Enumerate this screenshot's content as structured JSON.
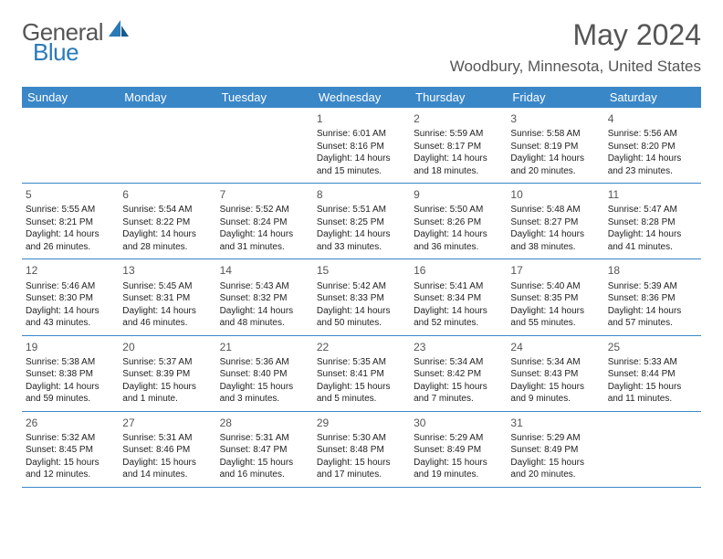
{
  "logo": {
    "general": "General",
    "blue": "Blue"
  },
  "title": "May 2024",
  "location": "Woodbury, Minnesota, United States",
  "colors": {
    "header_bg": "#3a87c8",
    "header_text": "#ffffff",
    "text_gray": "#555555",
    "text_dark": "#222222",
    "logo_blue": "#2a7ab8",
    "border": "#3a87c8",
    "background": "#ffffff"
  },
  "day_names": [
    "Sunday",
    "Monday",
    "Tuesday",
    "Wednesday",
    "Thursday",
    "Friday",
    "Saturday"
  ],
  "weeks": [
    [
      {
        "n": "",
        "sr": "",
        "ss": "",
        "dl": ""
      },
      {
        "n": "",
        "sr": "",
        "ss": "",
        "dl": ""
      },
      {
        "n": "",
        "sr": "",
        "ss": "",
        "dl": ""
      },
      {
        "n": "1",
        "sr": "Sunrise: 6:01 AM",
        "ss": "Sunset: 8:16 PM",
        "dl": "Daylight: 14 hours and 15 minutes."
      },
      {
        "n": "2",
        "sr": "Sunrise: 5:59 AM",
        "ss": "Sunset: 8:17 PM",
        "dl": "Daylight: 14 hours and 18 minutes."
      },
      {
        "n": "3",
        "sr": "Sunrise: 5:58 AM",
        "ss": "Sunset: 8:19 PM",
        "dl": "Daylight: 14 hours and 20 minutes."
      },
      {
        "n": "4",
        "sr": "Sunrise: 5:56 AM",
        "ss": "Sunset: 8:20 PM",
        "dl": "Daylight: 14 hours and 23 minutes."
      }
    ],
    [
      {
        "n": "5",
        "sr": "Sunrise: 5:55 AM",
        "ss": "Sunset: 8:21 PM",
        "dl": "Daylight: 14 hours and 26 minutes."
      },
      {
        "n": "6",
        "sr": "Sunrise: 5:54 AM",
        "ss": "Sunset: 8:22 PM",
        "dl": "Daylight: 14 hours and 28 minutes."
      },
      {
        "n": "7",
        "sr": "Sunrise: 5:52 AM",
        "ss": "Sunset: 8:24 PM",
        "dl": "Daylight: 14 hours and 31 minutes."
      },
      {
        "n": "8",
        "sr": "Sunrise: 5:51 AM",
        "ss": "Sunset: 8:25 PM",
        "dl": "Daylight: 14 hours and 33 minutes."
      },
      {
        "n": "9",
        "sr": "Sunrise: 5:50 AM",
        "ss": "Sunset: 8:26 PM",
        "dl": "Daylight: 14 hours and 36 minutes."
      },
      {
        "n": "10",
        "sr": "Sunrise: 5:48 AM",
        "ss": "Sunset: 8:27 PM",
        "dl": "Daylight: 14 hours and 38 minutes."
      },
      {
        "n": "11",
        "sr": "Sunrise: 5:47 AM",
        "ss": "Sunset: 8:28 PM",
        "dl": "Daylight: 14 hours and 41 minutes."
      }
    ],
    [
      {
        "n": "12",
        "sr": "Sunrise: 5:46 AM",
        "ss": "Sunset: 8:30 PM",
        "dl": "Daylight: 14 hours and 43 minutes."
      },
      {
        "n": "13",
        "sr": "Sunrise: 5:45 AM",
        "ss": "Sunset: 8:31 PM",
        "dl": "Daylight: 14 hours and 46 minutes."
      },
      {
        "n": "14",
        "sr": "Sunrise: 5:43 AM",
        "ss": "Sunset: 8:32 PM",
        "dl": "Daylight: 14 hours and 48 minutes."
      },
      {
        "n": "15",
        "sr": "Sunrise: 5:42 AM",
        "ss": "Sunset: 8:33 PM",
        "dl": "Daylight: 14 hours and 50 minutes."
      },
      {
        "n": "16",
        "sr": "Sunrise: 5:41 AM",
        "ss": "Sunset: 8:34 PM",
        "dl": "Daylight: 14 hours and 52 minutes."
      },
      {
        "n": "17",
        "sr": "Sunrise: 5:40 AM",
        "ss": "Sunset: 8:35 PM",
        "dl": "Daylight: 14 hours and 55 minutes."
      },
      {
        "n": "18",
        "sr": "Sunrise: 5:39 AM",
        "ss": "Sunset: 8:36 PM",
        "dl": "Daylight: 14 hours and 57 minutes."
      }
    ],
    [
      {
        "n": "19",
        "sr": "Sunrise: 5:38 AM",
        "ss": "Sunset: 8:38 PM",
        "dl": "Daylight: 14 hours and 59 minutes."
      },
      {
        "n": "20",
        "sr": "Sunrise: 5:37 AM",
        "ss": "Sunset: 8:39 PM",
        "dl": "Daylight: 15 hours and 1 minute."
      },
      {
        "n": "21",
        "sr": "Sunrise: 5:36 AM",
        "ss": "Sunset: 8:40 PM",
        "dl": "Daylight: 15 hours and 3 minutes."
      },
      {
        "n": "22",
        "sr": "Sunrise: 5:35 AM",
        "ss": "Sunset: 8:41 PM",
        "dl": "Daylight: 15 hours and 5 minutes."
      },
      {
        "n": "23",
        "sr": "Sunrise: 5:34 AM",
        "ss": "Sunset: 8:42 PM",
        "dl": "Daylight: 15 hours and 7 minutes."
      },
      {
        "n": "24",
        "sr": "Sunrise: 5:34 AM",
        "ss": "Sunset: 8:43 PM",
        "dl": "Daylight: 15 hours and 9 minutes."
      },
      {
        "n": "25",
        "sr": "Sunrise: 5:33 AM",
        "ss": "Sunset: 8:44 PM",
        "dl": "Daylight: 15 hours and 11 minutes."
      }
    ],
    [
      {
        "n": "26",
        "sr": "Sunrise: 5:32 AM",
        "ss": "Sunset: 8:45 PM",
        "dl": "Daylight: 15 hours and 12 minutes."
      },
      {
        "n": "27",
        "sr": "Sunrise: 5:31 AM",
        "ss": "Sunset: 8:46 PM",
        "dl": "Daylight: 15 hours and 14 minutes."
      },
      {
        "n": "28",
        "sr": "Sunrise: 5:31 AM",
        "ss": "Sunset: 8:47 PM",
        "dl": "Daylight: 15 hours and 16 minutes."
      },
      {
        "n": "29",
        "sr": "Sunrise: 5:30 AM",
        "ss": "Sunset: 8:48 PM",
        "dl": "Daylight: 15 hours and 17 minutes."
      },
      {
        "n": "30",
        "sr": "Sunrise: 5:29 AM",
        "ss": "Sunset: 8:49 PM",
        "dl": "Daylight: 15 hours and 19 minutes."
      },
      {
        "n": "31",
        "sr": "Sunrise: 5:29 AM",
        "ss": "Sunset: 8:49 PM",
        "dl": "Daylight: 15 hours and 20 minutes."
      },
      {
        "n": "",
        "sr": "",
        "ss": "",
        "dl": ""
      }
    ]
  ]
}
